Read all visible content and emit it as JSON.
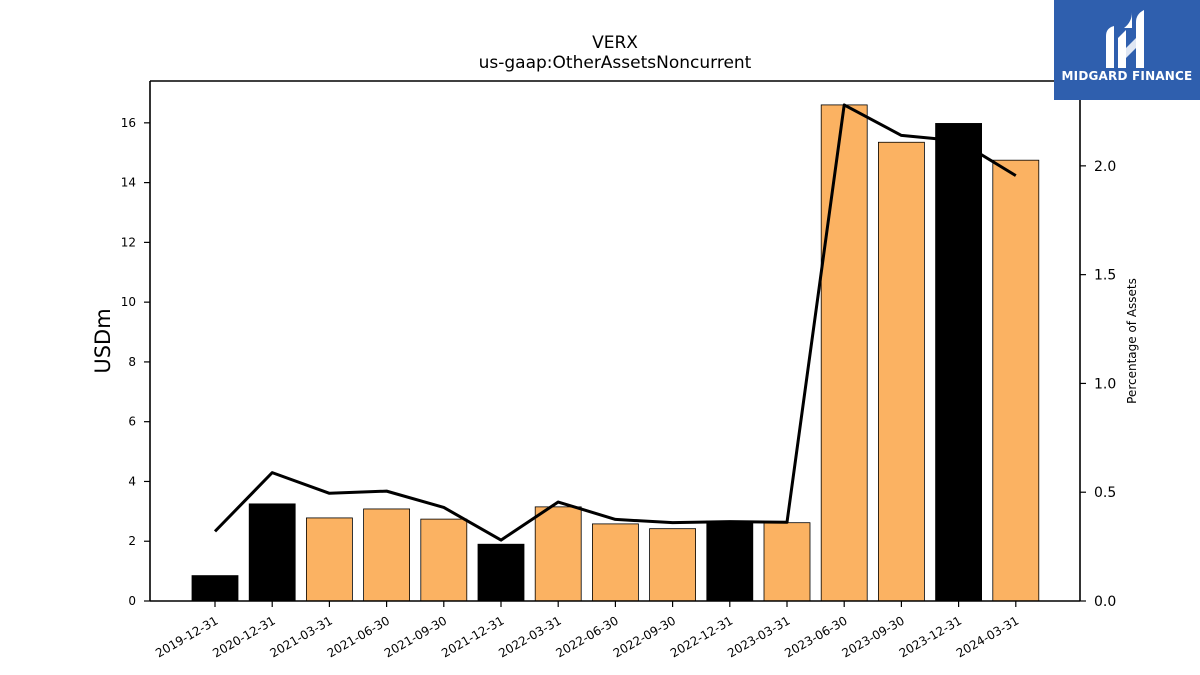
{
  "chart_data": {
    "type": "bar+line",
    "title": "VERX",
    "subtitle": "us-gaap:OtherAssetsNoncurrent",
    "ylabel": "USDm",
    "y2label": "Percentage of Assets",
    "ylim": [
      0,
      17.4
    ],
    "y2lim": [
      0,
      2.39
    ],
    "yticks": [
      0,
      2,
      4,
      6,
      8,
      10,
      12,
      14,
      16
    ],
    "y2ticks": [
      "0.0",
      "0.5",
      "1.0",
      "1.5",
      "2.0"
    ],
    "categories": [
      "2019-12-31",
      "2020-12-31",
      "2021-03-31",
      "2021-06-30",
      "2021-09-30",
      "2021-12-31",
      "2022-03-31",
      "2022-06-30",
      "2022-09-30",
      "2022-12-31",
      "2023-03-31",
      "2023-06-30",
      "2023-09-30",
      "2023-12-31",
      "2024-03-31"
    ],
    "series": [
      {
        "values": [
          0.85,
          3.25,
          2.78,
          3.08,
          2.74,
          1.9,
          3.15,
          2.58,
          2.42,
          2.68,
          2.62,
          16.6,
          15.35,
          15.98,
          14.75
        ],
        "period_type": [
          "annual",
          "annual",
          "quarterly",
          "quarterly",
          "quarterly",
          "annual",
          "quarterly",
          "quarterly",
          "quarterly",
          "annual",
          "quarterly",
          "quarterly",
          "quarterly",
          "annual",
          "quarterly"
        ]
      },
      {
        "axis": "right",
        "values": [
          0.32,
          0.59,
          0.495,
          0.505,
          0.43,
          0.28,
          0.455,
          0.375,
          0.36,
          0.365,
          0.362,
          2.28,
          2.14,
          2.115,
          1.955
        ]
      }
    ],
    "colors": {
      "annual": "#000000",
      "quarterly": "#fbb262",
      "line": "#000000"
    }
  },
  "logo": {
    "text": "MIDGARD FINANCE",
    "background": "#2f5fae"
  }
}
